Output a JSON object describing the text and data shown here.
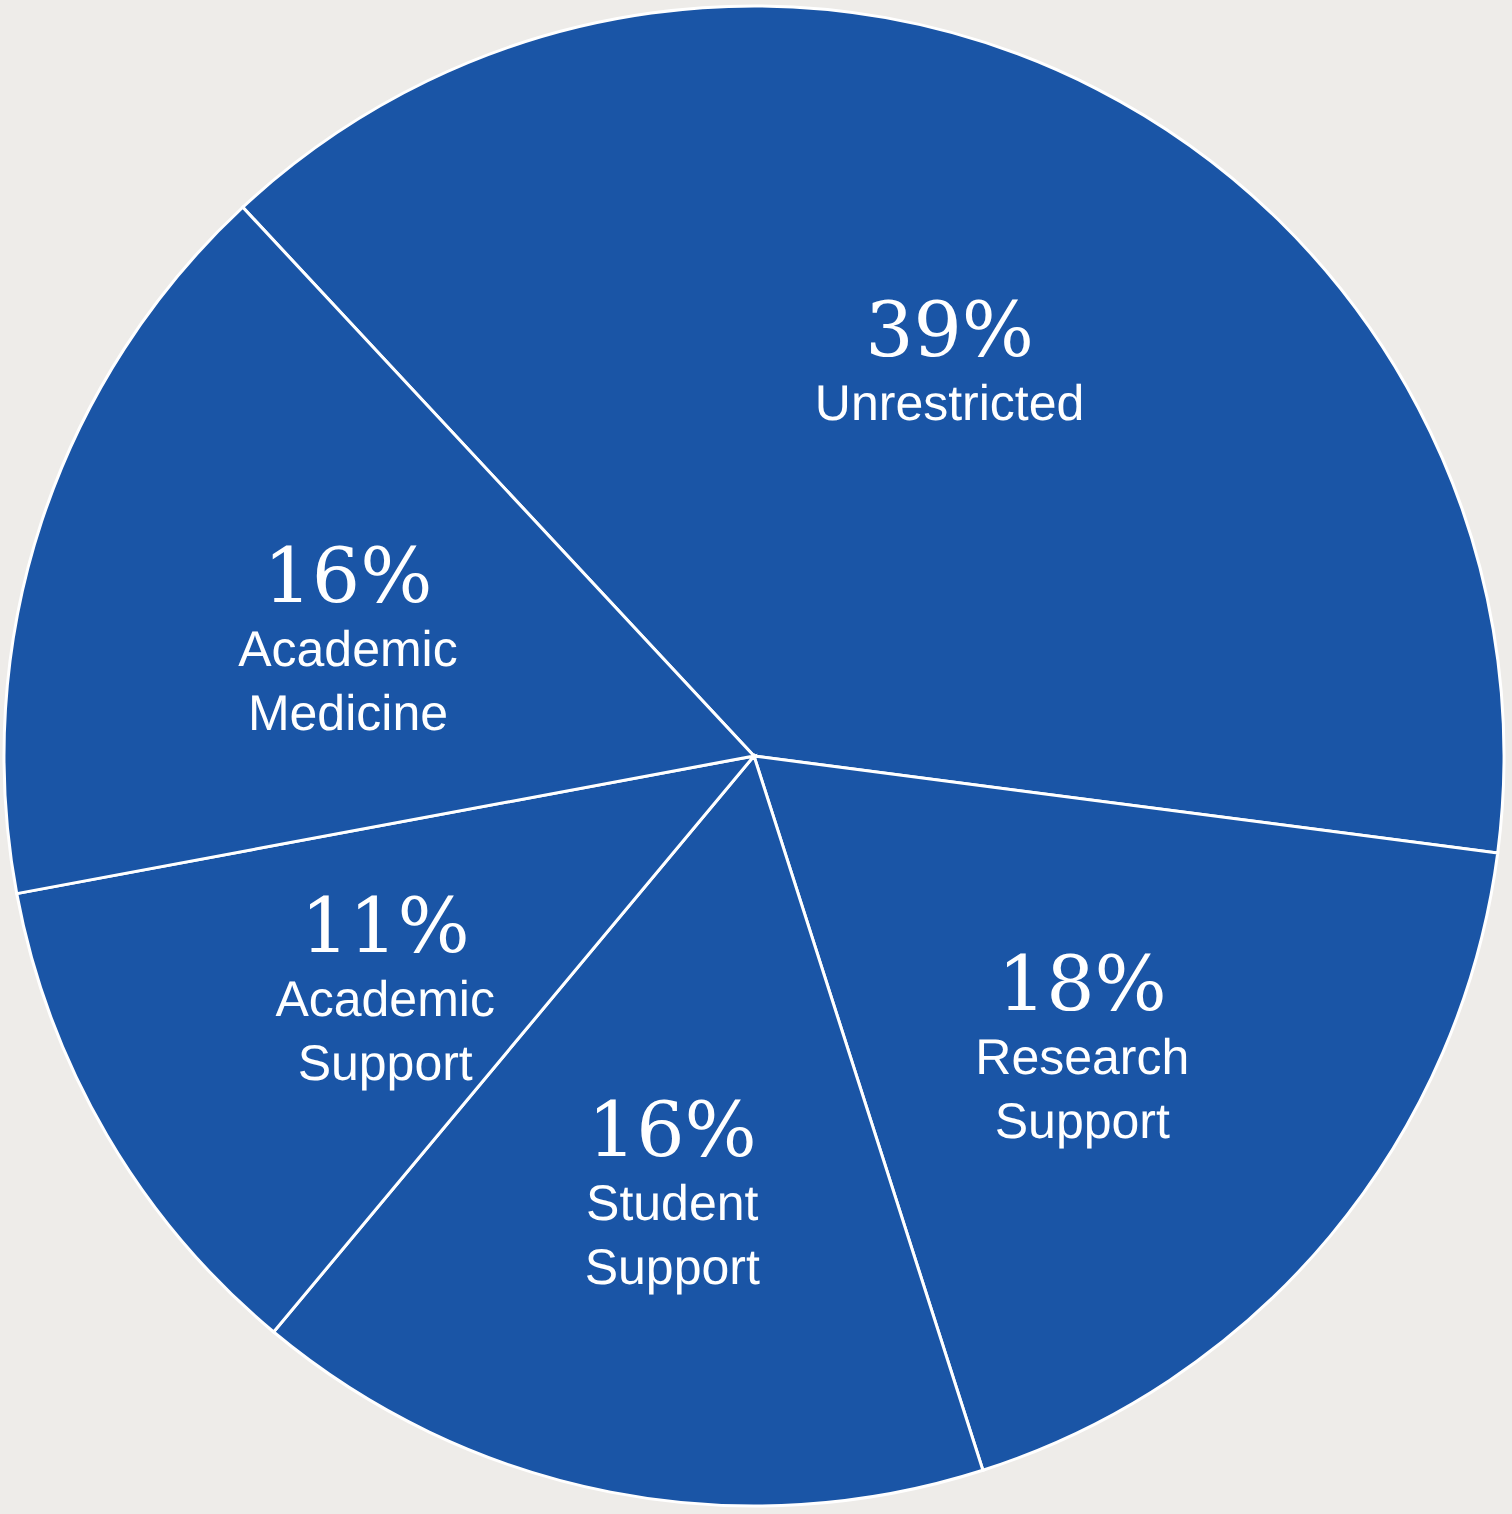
{
  "chart_data": {
    "type": "pie",
    "categories": [
      "Unrestricted",
      "Research Support",
      "Student Support",
      "Academic Support",
      "Academic Medicine"
    ],
    "values": [
      39,
      18,
      16,
      11,
      16
    ],
    "colors": [
      "#1a55a6",
      "#1a55a6",
      "#1a55a6",
      "#1a55a6",
      "#1a55a6"
    ],
    "value_labels": [
      "39%",
      "18%",
      "16%",
      "11%",
      "16%"
    ]
  }
}
